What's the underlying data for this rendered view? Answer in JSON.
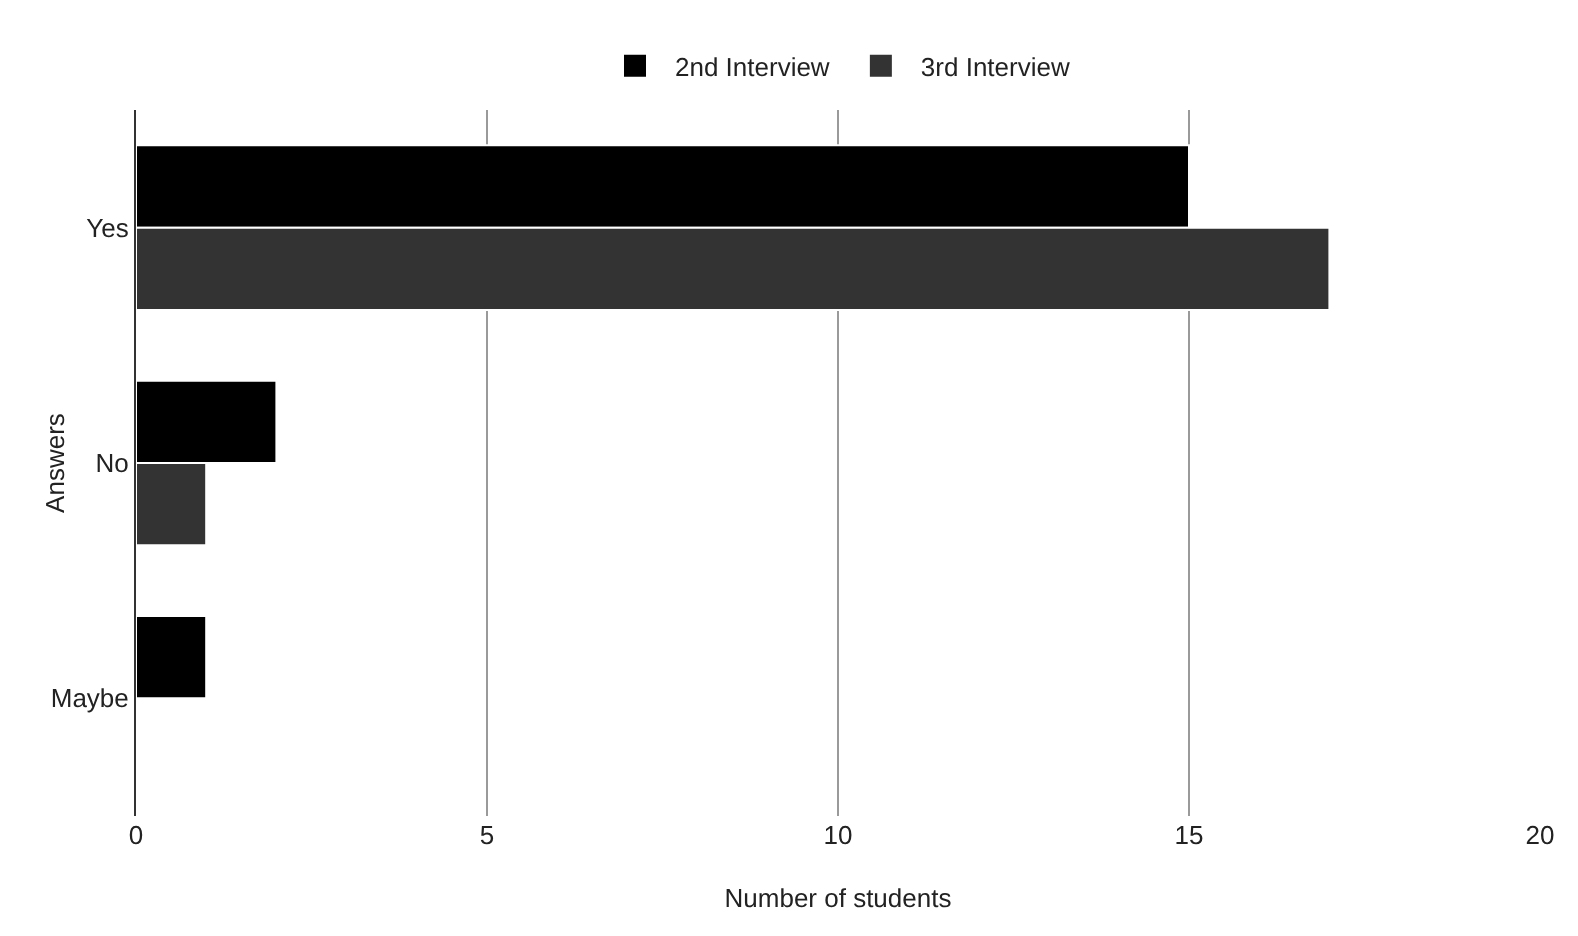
{
  "chart_data": {
    "type": "bar",
    "orientation": "horizontal",
    "categories": [
      "Yes",
      "No",
      "Maybe"
    ],
    "series": [
      {
        "name": "2nd Interview",
        "color": "#000000",
        "values": [
          15,
          2,
          1
        ]
      },
      {
        "name": "3rd Interview",
        "color": "#333333",
        "values": [
          17,
          1,
          null
        ]
      }
    ],
    "xlabel": "Number of students",
    "ylabel": "Answers",
    "xlim": [
      0,
      20
    ],
    "xticks": [
      0,
      5,
      10,
      15,
      20
    ],
    "grid": "x",
    "legend": "top"
  }
}
